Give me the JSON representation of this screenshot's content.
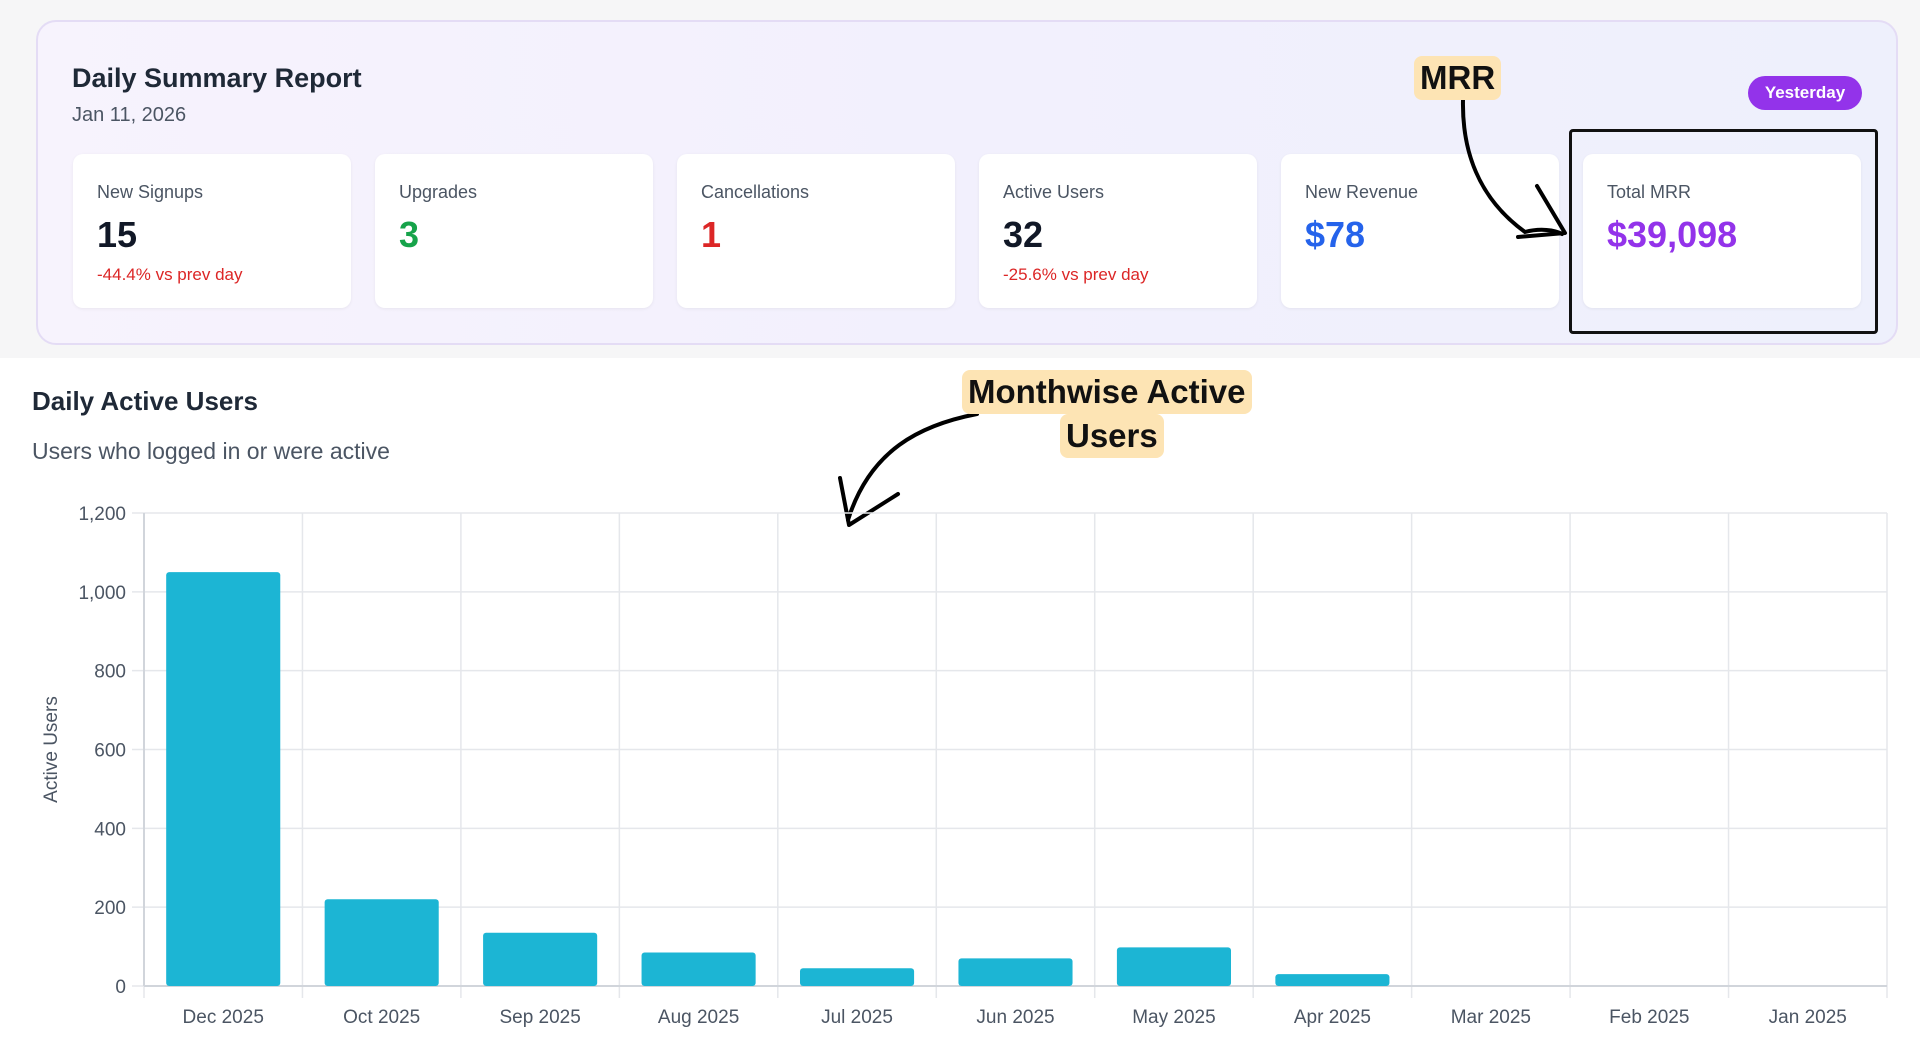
{
  "summary": {
    "title": "Daily Summary Report",
    "date": "Jan 11, 2026",
    "badge": "Yesterday",
    "cards": [
      {
        "label": "New Signups",
        "value": "15",
        "delta": "-44.4% vs prev day",
        "color": "#111827"
      },
      {
        "label": "Upgrades",
        "value": "3",
        "delta": "",
        "color": "#16a34a"
      },
      {
        "label": "Cancellations",
        "value": "1",
        "delta": "",
        "color": "#dc2626"
      },
      {
        "label": "Active Users",
        "value": "32",
        "delta": "-25.6% vs prev day",
        "color": "#111827"
      },
      {
        "label": "New Revenue",
        "value": "$78",
        "delta": "",
        "color": "#2563eb"
      },
      {
        "label": "Total MRR",
        "value": "$39,098",
        "delta": "",
        "color": "#9333ea"
      }
    ],
    "delta_color": "#dc2626"
  },
  "annotations": {
    "mrr": "MRR",
    "monthwise_line1": "Monthwise Active",
    "monthwise_line2": "Users"
  },
  "chart": {
    "title": "Daily Active Users",
    "subtitle": "Users who logged in or were active"
  },
  "chart_data": {
    "type": "bar",
    "categories": [
      "Dec 2025",
      "Oct 2025",
      "Sep 2025",
      "Aug 2025",
      "Jul 2025",
      "Jun 2025",
      "May 2025",
      "Apr 2025",
      "Mar 2025",
      "Feb 2025",
      "Jan 2025"
    ],
    "values": [
      1050,
      220,
      135,
      85,
      45,
      70,
      98,
      30,
      0,
      0,
      0
    ],
    "ylabel": "Active Users",
    "xlabel": "",
    "ylim": [
      0,
      1200
    ],
    "yticks": [
      0,
      200,
      400,
      600,
      800,
      1000,
      1200
    ],
    "ytick_labels": [
      "0",
      "200",
      "400",
      "600",
      "800",
      "1,000",
      "1,200"
    ],
    "bar_color": "#1cb5d4",
    "grid": true
  }
}
